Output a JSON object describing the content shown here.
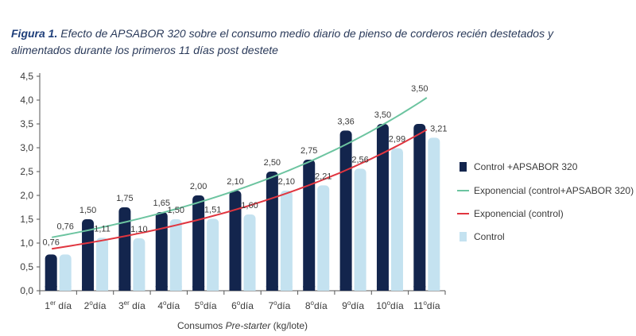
{
  "caption": {
    "label": "Figura 1.",
    "text": "Efecto de APSABOR 320 sobre el consumo medio diario de pienso de corderos recién destetados y alimentados durante los primeros 11 días post destete"
  },
  "chart_data": {
    "type": "bar",
    "categories": [
      {
        "num": "1",
        "sup": "er",
        "rest": " día"
      },
      {
        "num": "2",
        "sup": "o",
        "rest": "día"
      },
      {
        "num": "3",
        "sup": "er",
        "rest": " día"
      },
      {
        "num": "4",
        "sup": "o",
        "rest": "día"
      },
      {
        "num": "5",
        "sup": "o",
        "rest": "día"
      },
      {
        "num": "6",
        "sup": "o",
        "rest": "día"
      },
      {
        "num": "7",
        "sup": "o",
        "rest": "día"
      },
      {
        "num": "8",
        "sup": "o",
        "rest": "día"
      },
      {
        "num": "9",
        "sup": "o",
        "rest": "día"
      },
      {
        "num": "10",
        "sup": "o",
        "rest": "día"
      },
      {
        "num": "11",
        "sup": "o",
        "rest": "día"
      }
    ],
    "series": [
      {
        "name": "Control +APSABOR 320",
        "color": "#13254d",
        "values": [
          0.76,
          1.5,
          1.75,
          1.65,
          2.0,
          2.1,
          2.5,
          2.75,
          3.36,
          3.5,
          3.5
        ],
        "labels": [
          "0,76",
          "1,50",
          "1,75",
          "1,65",
          "2,00",
          "2,10",
          "2,50",
          "2,75",
          "3,36",
          "3,50",
          "3,50"
        ]
      },
      {
        "name": "Control",
        "color": "#c4e2f0",
        "values": [
          0.76,
          1.11,
          1.1,
          1.5,
          1.51,
          1.6,
          2.1,
          2.21,
          2.56,
          2.99,
          3.21
        ],
        "labels": [
          "0,76",
          "1,11",
          "1,10",
          "1,50",
          "1,51",
          "1,60",
          "2,10",
          "2,21",
          "2,56",
          "2,99",
          "3,21"
        ]
      }
    ],
    "trendlines": [
      {
        "name": "Exponencial (control+APSABOR 320)",
        "color": "#6cc4a0",
        "type": "exponential",
        "start": 1.12,
        "end": 4.05
      },
      {
        "name": "Exponencial (control)",
        "color": "#e0353f",
        "type": "exponential",
        "start": 0.88,
        "end": 3.38
      }
    ],
    "legend_order": [
      "Control +APSABOR 320",
      "Exponencial (control+APSABOR 320)",
      "Exponencial (control)",
      "Control"
    ],
    "legend_position": "right",
    "xlabel": {
      "pre": "Consumos ",
      "ital": "Pre-starter",
      "post": " (kg/lote)"
    },
    "ylabel": "",
    "ylim": [
      0,
      4.5
    ],
    "yticks": [
      "0,0",
      "0,5",
      "1,0",
      "1,5",
      "2,0",
      "2,5",
      "3,0",
      "3,5",
      "4,0",
      "4,5"
    ],
    "grid": false
  }
}
